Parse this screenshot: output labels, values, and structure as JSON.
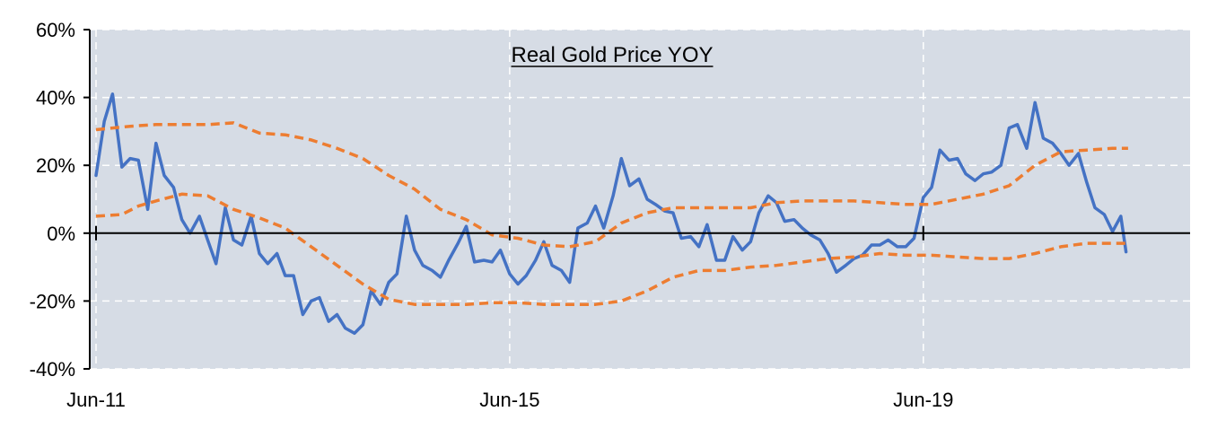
{
  "chart_data": {
    "type": "line",
    "title": "Real Gold Price YOY",
    "xlabel": "",
    "ylabel": "",
    "ylim": [
      -40,
      60
    ],
    "xlim": [
      2011.42,
      2022.0
    ],
    "y_tick_values": [
      60,
      40,
      20,
      0,
      -20,
      -40
    ],
    "y_tick_labels": [
      "60%",
      "40%",
      "20%",
      "0%",
      "-20%",
      "-40%"
    ],
    "x_tick_values": [
      2011.42,
      2015.42,
      2019.42
    ],
    "x_tick_labels": [
      "Jun-11",
      "Jun-15",
      "Jun-19"
    ],
    "grid": true,
    "legend": "none",
    "colors": {
      "plot_background": "#d6dce5",
      "series_main": "#4472c4",
      "series_band": "#ed7d31",
      "axis": "#000000",
      "grid": "#ffffff"
    },
    "series": [
      {
        "style": "solid",
        "color": "#4472c4",
        "points": [
          [
            2011.42,
            17
          ],
          [
            2011.5,
            33
          ],
          [
            2011.58,
            41
          ],
          [
            2011.67,
            19.5
          ],
          [
            2011.75,
            22
          ],
          [
            2011.83,
            21.5
          ],
          [
            2011.92,
            7
          ],
          [
            2012.0,
            26.5
          ],
          [
            2012.08,
            17
          ],
          [
            2012.17,
            13.5
          ],
          [
            2012.25,
            4
          ],
          [
            2012.33,
            0
          ],
          [
            2012.42,
            5
          ],
          [
            2012.5,
            -2
          ],
          [
            2012.58,
            -9
          ],
          [
            2012.67,
            7.5
          ],
          [
            2012.75,
            -2
          ],
          [
            2012.83,
            -3.5
          ],
          [
            2012.92,
            5
          ],
          [
            2013.0,
            -6
          ],
          [
            2013.08,
            -9
          ],
          [
            2013.17,
            -6
          ],
          [
            2013.25,
            -12.5
          ],
          [
            2013.33,
            -12.5
          ],
          [
            2013.42,
            -24
          ],
          [
            2013.5,
            -20
          ],
          [
            2013.58,
            -19
          ],
          [
            2013.67,
            -26
          ],
          [
            2013.75,
            -24
          ],
          [
            2013.83,
            -28
          ],
          [
            2013.92,
            -29.5
          ],
          [
            2014.0,
            -27
          ],
          [
            2014.08,
            -17
          ],
          [
            2014.17,
            -21
          ],
          [
            2014.25,
            -14.5
          ],
          [
            2014.33,
            -12
          ],
          [
            2014.42,
            5
          ],
          [
            2014.5,
            -5
          ],
          [
            2014.58,
            -9.5
          ],
          [
            2014.67,
            -11
          ],
          [
            2014.75,
            -13
          ],
          [
            2014.83,
            -8
          ],
          [
            2014.92,
            -3
          ],
          [
            2015.0,
            2
          ],
          [
            2015.08,
            -8.5
          ],
          [
            2015.17,
            -8
          ],
          [
            2015.25,
            -8.5
          ],
          [
            2015.33,
            -5
          ],
          [
            2015.42,
            -12
          ],
          [
            2015.5,
            -15
          ],
          [
            2015.58,
            -12.5
          ],
          [
            2015.67,
            -8
          ],
          [
            2015.75,
            -2.5
          ],
          [
            2015.83,
            -9.5
          ],
          [
            2015.92,
            -11
          ],
          [
            2016.0,
            -14.5
          ],
          [
            2016.08,
            1.5
          ],
          [
            2016.17,
            3
          ],
          [
            2016.25,
            8
          ],
          [
            2016.33,
            1.5
          ],
          [
            2016.42,
            11
          ],
          [
            2016.5,
            22
          ],
          [
            2016.58,
            14
          ],
          [
            2016.67,
            16
          ],
          [
            2016.75,
            10
          ],
          [
            2016.83,
            8.5
          ],
          [
            2016.92,
            6.5
          ],
          [
            2017.0,
            6
          ],
          [
            2017.08,
            -1.5
          ],
          [
            2017.17,
            -1
          ],
          [
            2017.25,
            -4
          ],
          [
            2017.33,
            2.5
          ],
          [
            2017.42,
            -8
          ],
          [
            2017.5,
            -8
          ],
          [
            2017.58,
            -1
          ],
          [
            2017.67,
            -5
          ],
          [
            2017.75,
            -2.5
          ],
          [
            2017.83,
            6
          ],
          [
            2017.92,
            11
          ],
          [
            2018.0,
            9
          ],
          [
            2018.08,
            3.5
          ],
          [
            2018.17,
            4
          ],
          [
            2018.25,
            1.5
          ],
          [
            2018.33,
            -0.5
          ],
          [
            2018.42,
            -2
          ],
          [
            2018.5,
            -6
          ],
          [
            2018.58,
            -11.5
          ],
          [
            2018.67,
            -9.5
          ],
          [
            2018.75,
            -7.5
          ],
          [
            2018.83,
            -6.5
          ],
          [
            2018.92,
            -3.5
          ],
          [
            2019.0,
            -3.5
          ],
          [
            2019.08,
            -2
          ],
          [
            2019.17,
            -4
          ],
          [
            2019.25,
            -4
          ],
          [
            2019.33,
            -1.5
          ],
          [
            2019.42,
            10.5
          ],
          [
            2019.5,
            13.5
          ],
          [
            2019.58,
            24.5
          ],
          [
            2019.67,
            21.5
          ],
          [
            2019.75,
            22
          ],
          [
            2019.83,
            17.5
          ],
          [
            2019.92,
            15.5
          ],
          [
            2020.0,
            17.5
          ],
          [
            2020.08,
            18
          ],
          [
            2020.17,
            20
          ],
          [
            2020.25,
            31
          ],
          [
            2020.33,
            32
          ],
          [
            2020.42,
            25
          ],
          [
            2020.5,
            38.5
          ],
          [
            2020.58,
            28
          ],
          [
            2020.67,
            26.5
          ],
          [
            2020.75,
            23.5
          ],
          [
            2020.83,
            20
          ],
          [
            2020.92,
            23.5
          ],
          [
            2021.0,
            15
          ],
          [
            2021.08,
            7.5
          ],
          [
            2021.17,
            5.5
          ],
          [
            2021.25,
            0.5
          ],
          [
            2021.33,
            5
          ],
          [
            2021.38,
            -5.5
          ]
        ]
      },
      {
        "style": "dashed",
        "color": "#ed7d31",
        "points": [
          [
            2011.42,
            30.5
          ],
          [
            2011.75,
            31.5
          ],
          [
            2012.0,
            32
          ],
          [
            2012.5,
            32
          ],
          [
            2012.75,
            32.5
          ],
          [
            2013.0,
            29.5
          ],
          [
            2013.25,
            29
          ],
          [
            2013.5,
            27.5
          ],
          [
            2013.75,
            25
          ],
          [
            2014.0,
            22
          ],
          [
            2014.25,
            17
          ],
          [
            2014.5,
            13
          ],
          [
            2014.75,
            7
          ],
          [
            2015.0,
            4
          ],
          [
            2015.25,
            -0.5
          ],
          [
            2015.5,
            -1.5
          ],
          [
            2015.75,
            -3.5
          ],
          [
            2016.0,
            -4
          ],
          [
            2016.25,
            -2.5
          ],
          [
            2016.5,
            3
          ],
          [
            2016.75,
            6
          ],
          [
            2017.0,
            7.5
          ],
          [
            2017.25,
            7.5
          ],
          [
            2017.5,
            7.5
          ],
          [
            2017.75,
            7.5
          ],
          [
            2018.0,
            9
          ],
          [
            2018.25,
            9.5
          ],
          [
            2018.5,
            9.5
          ],
          [
            2018.75,
            9.5
          ],
          [
            2019.0,
            9
          ],
          [
            2019.25,
            8.5
          ],
          [
            2019.5,
            8.5
          ],
          [
            2019.75,
            10
          ],
          [
            2020.0,
            11.5
          ],
          [
            2020.25,
            14
          ],
          [
            2020.5,
            20
          ],
          [
            2020.75,
            24
          ],
          [
            2021.0,
            24.5
          ],
          [
            2021.25,
            25
          ],
          [
            2021.4,
            25
          ]
        ]
      },
      {
        "style": "dashed",
        "color": "#ed7d31",
        "points": [
          [
            2011.42,
            5
          ],
          [
            2011.67,
            5.5
          ],
          [
            2011.83,
            8
          ],
          [
            2012.0,
            9.5
          ],
          [
            2012.25,
            11.5
          ],
          [
            2012.5,
            11
          ],
          [
            2012.75,
            7
          ],
          [
            2013.0,
            4.5
          ],
          [
            2013.25,
            1.5
          ],
          [
            2013.5,
            -4
          ],
          [
            2013.75,
            -9.5
          ],
          [
            2014.0,
            -15
          ],
          [
            2014.25,
            -19.5
          ],
          [
            2014.5,
            -21
          ],
          [
            2014.75,
            -21
          ],
          [
            2015.0,
            -21
          ],
          [
            2015.25,
            -20.5
          ],
          [
            2015.5,
            -20.5
          ],
          [
            2015.75,
            -21
          ],
          [
            2016.0,
            -21
          ],
          [
            2016.25,
            -21
          ],
          [
            2016.5,
            -20
          ],
          [
            2016.75,
            -17
          ],
          [
            2017.0,
            -13
          ],
          [
            2017.25,
            -11
          ],
          [
            2017.5,
            -11
          ],
          [
            2017.75,
            -10
          ],
          [
            2018.0,
            -9.5
          ],
          [
            2018.25,
            -8.5
          ],
          [
            2018.5,
            -7.5
          ],
          [
            2018.75,
            -7
          ],
          [
            2019.0,
            -6
          ],
          [
            2019.25,
            -6.5
          ],
          [
            2019.5,
            -6.5
          ],
          [
            2019.75,
            -7
          ],
          [
            2020.0,
            -7.5
          ],
          [
            2020.25,
            -7.5
          ],
          [
            2020.5,
            -6
          ],
          [
            2020.75,
            -4
          ],
          [
            2021.0,
            -3
          ],
          [
            2021.25,
            -3
          ],
          [
            2021.4,
            -3
          ]
        ]
      }
    ]
  }
}
